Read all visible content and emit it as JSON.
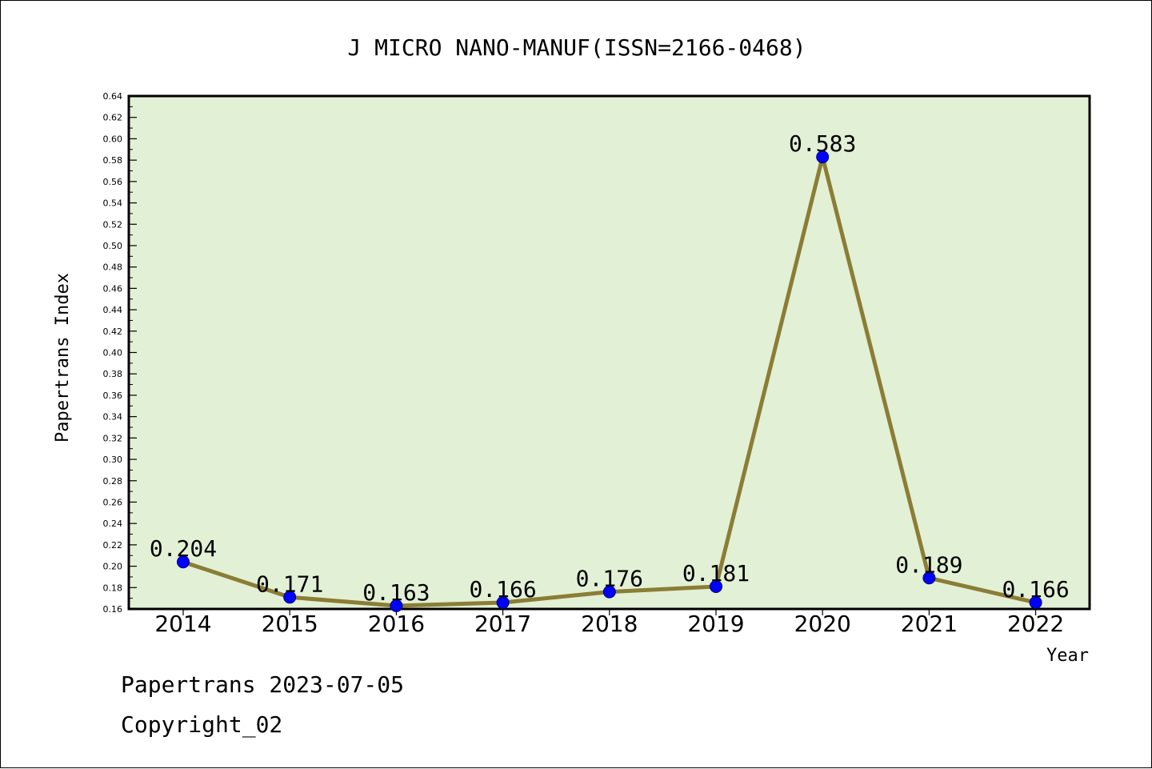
{
  "chart_data": {
    "type": "line",
    "title": "J MICRO NANO-MANUF(ISSN=2166-0468)",
    "xlabel": "Year",
    "ylabel": "Papertrans Index",
    "categories": [
      "2014",
      "2015",
      "2016",
      "2017",
      "2018",
      "2019",
      "2020",
      "2021",
      "2022"
    ],
    "series": [
      {
        "values": [
          0.204,
          0.171,
          0.163,
          0.166,
          0.176,
          0.181,
          0.583,
          0.189,
          0.166
        ],
        "labels": [
          "0.204",
          "0.171",
          "0.163",
          "0.166",
          "0.176",
          "0.181",
          "0.583",
          "0.189",
          "0.166"
        ]
      }
    ],
    "ylim": [
      0.16,
      0.64
    ],
    "yticks": [
      "0.16",
      "0.18",
      "0.20",
      "0.22",
      "0.24",
      "0.26",
      "0.28",
      "0.30",
      "0.32",
      "0.34",
      "0.36",
      "0.38",
      "0.40",
      "0.42",
      "0.44",
      "0.46",
      "0.48",
      "0.50",
      "0.52",
      "0.54",
      "0.56",
      "0.58",
      "0.60",
      "0.62",
      "0.64"
    ],
    "grid": false,
    "legend": "none",
    "colors": {
      "plot_background": "#e2f0d5",
      "line": "#8b7d35",
      "marker": "#0000ff",
      "axis": "#000000"
    }
  },
  "footer": {
    "line1": "Papertrans 2023-07-05",
    "line2": "Copyright_02"
  }
}
